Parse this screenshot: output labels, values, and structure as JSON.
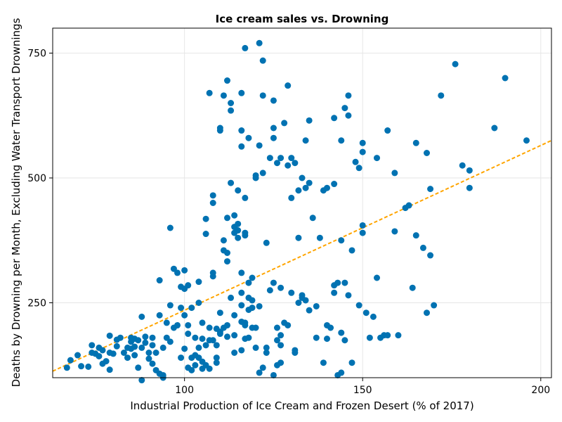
{
  "chart_data": {
    "type": "scatter",
    "title": "Ice cream sales vs. Drowning",
    "xlabel": "Industrial Production of Ice Cream and Frozen Desert (% of 2017)",
    "ylabel": "Deaths by Drowning per Month, Excluding Water Transport Drownings",
    "xlim": [
      63,
      203
    ],
    "ylim": [
      100,
      800
    ],
    "xticks": [
      100,
      150,
      200
    ],
    "yticks": [
      250,
      500,
      750
    ],
    "grid": true,
    "marker_color": "#0072B2",
    "trend_color": "#FFA500",
    "trend_line": {
      "x": [
        63,
        203
      ],
      "y": [
        113,
        575
      ]
    },
    "points": [
      [
        67,
        120
      ],
      [
        68,
        135
      ],
      [
        70,
        145
      ],
      [
        71,
        123
      ],
      [
        73,
        122
      ],
      [
        74,
        150
      ],
      [
        74,
        165
      ],
      [
        75,
        148
      ],
      [
        76,
        143
      ],
      [
        76,
        160
      ],
      [
        77,
        155
      ],
      [
        77,
        128
      ],
      [
        78,
        133
      ],
      [
        79,
        150
      ],
      [
        79,
        116
      ],
      [
        79,
        184
      ],
      [
        80,
        148
      ],
      [
        81,
        163
      ],
      [
        81,
        176
      ],
      [
        82,
        180
      ],
      [
        83,
        150
      ],
      [
        84,
        160
      ],
      [
        84,
        140
      ],
      [
        85,
        172
      ],
      [
        85,
        158
      ],
      [
        85,
        180
      ],
      [
        86,
        145
      ],
      [
        86,
        178
      ],
      [
        86,
        162
      ],
      [
        87,
        120
      ],
      [
        87,
        175
      ],
      [
        88,
        222
      ],
      [
        88,
        160
      ],
      [
        88,
        95
      ],
      [
        89,
        182
      ],
      [
        89,
        170
      ],
      [
        90,
        138
      ],
      [
        90,
        150
      ],
      [
        91,
        180
      ],
      [
        91,
        165
      ],
      [
        91,
        128
      ],
      [
        92,
        150
      ],
      [
        92,
        115
      ],
      [
        93,
        108
      ],
      [
        93,
        295
      ],
      [
        93,
        225
      ],
      [
        94,
        105
      ],
      [
        94,
        160
      ],
      [
        94,
        100
      ],
      [
        95,
        180
      ],
      [
        95,
        210
      ],
      [
        96,
        245
      ],
      [
        96,
        172
      ],
      [
        96,
        400
      ],
      [
        97,
        318
      ],
      [
        97,
        200
      ],
      [
        98,
        310
      ],
      [
        98,
        205
      ],
      [
        99,
        282
      ],
      [
        99,
        240
      ],
      [
        99,
        140
      ],
      [
        100,
        278
      ],
      [
        100,
        315
      ],
      [
        100,
        158
      ],
      [
        100,
        225
      ],
      [
        101,
        188
      ],
      [
        101,
        205
      ],
      [
        101,
        285
      ],
      [
        101,
        120
      ],
      [
        102,
        115
      ],
      [
        102,
        140
      ],
      [
        102,
        240
      ],
      [
        103,
        145
      ],
      [
        103,
        125
      ],
      [
        103,
        180
      ],
      [
        104,
        292
      ],
      [
        104,
        250
      ],
      [
        104,
        160
      ],
      [
        104,
        140
      ],
      [
        105,
        132
      ],
      [
        105,
        118
      ],
      [
        105,
        178
      ],
      [
        105,
        210
      ],
      [
        106,
        165
      ],
      [
        106,
        125
      ],
      [
        106,
        388
      ],
      [
        106,
        418
      ],
      [
        107,
        670
      ],
      [
        107,
        200
      ],
      [
        107,
        175
      ],
      [
        107,
        118
      ],
      [
        108,
        175
      ],
      [
        108,
        465
      ],
      [
        108,
        450
      ],
      [
        108,
        310
      ],
      [
        108,
        303
      ],
      [
        109,
        198
      ],
      [
        109,
        165
      ],
      [
        109,
        140
      ],
      [
        109,
        130
      ],
      [
        110,
        595
      ],
      [
        110,
        600
      ],
      [
        110,
        230
      ],
      [
        110,
        192
      ],
      [
        110,
        188
      ],
      [
        111,
        665
      ],
      [
        111,
        375
      ],
      [
        111,
        355
      ],
      [
        111,
        200
      ],
      [
        112,
        350
      ],
      [
        112,
        695
      ],
      [
        112,
        420
      ],
      [
        112,
        333
      ],
      [
        112,
        205
      ],
      [
        112,
        182
      ],
      [
        113,
        635
      ],
      [
        113,
        650
      ],
      [
        113,
        490
      ],
      [
        113,
        260
      ],
      [
        114,
        425
      ],
      [
        114,
        390
      ],
      [
        114,
        402
      ],
      [
        114,
        225
      ],
      [
        114,
        185
      ],
      [
        114,
        150
      ],
      [
        115,
        395
      ],
      [
        115,
        408
      ],
      [
        115,
        475
      ],
      [
        115,
        380
      ],
      [
        116,
        563
      ],
      [
        116,
        670
      ],
      [
        116,
        595
      ],
      [
        116,
        212
      ],
      [
        116,
        245
      ],
      [
        116,
        310
      ],
      [
        116,
        270
      ],
      [
        116,
        155
      ],
      [
        117,
        760
      ],
      [
        117,
        385
      ],
      [
        117,
        390
      ],
      [
        117,
        460
      ],
      [
        117,
        210
      ],
      [
        117,
        205
      ],
      [
        117,
        178
      ],
      [
        118,
        580
      ],
      [
        118,
        290
      ],
      [
        118,
        260
      ],
      [
        118,
        236
      ],
      [
        118,
        180
      ],
      [
        119,
        300
      ],
      [
        119,
        255
      ],
      [
        119,
        240
      ],
      [
        119,
        200
      ],
      [
        120,
        500
      ],
      [
        120,
        505
      ],
      [
        120,
        200
      ],
      [
        120,
        160
      ],
      [
        121,
        770
      ],
      [
        121,
        565
      ],
      [
        121,
        110
      ],
      [
        121,
        243
      ],
      [
        122,
        735
      ],
      [
        122,
        665
      ],
      [
        122,
        510
      ],
      [
        122,
        120
      ],
      [
        123,
        370
      ],
      [
        123,
        160
      ],
      [
        123,
        150
      ],
      [
        124,
        540
      ],
      [
        124,
        275
      ],
      [
        125,
        580
      ],
      [
        125,
        600
      ],
      [
        125,
        655
      ],
      [
        125,
        290
      ],
      [
        125,
        105
      ],
      [
        126,
        530
      ],
      [
        126,
        200
      ],
      [
        126,
        175
      ],
      [
        126,
        125
      ],
      [
        127,
        540
      ],
      [
        127,
        280
      ],
      [
        127,
        185
      ],
      [
        127,
        165
      ],
      [
        127,
        130
      ],
      [
        128,
        610
      ],
      [
        128,
        210
      ],
      [
        129,
        525
      ],
      [
        129,
        685
      ],
      [
        129,
        205
      ],
      [
        130,
        460
      ],
      [
        130,
        540
      ],
      [
        130,
        270
      ],
      [
        131,
        530
      ],
      [
        131,
        150
      ],
      [
        131,
        155
      ],
      [
        132,
        380
      ],
      [
        132,
        475
      ],
      [
        132,
        250
      ],
      [
        133,
        500
      ],
      [
        133,
        265
      ],
      [
        133,
        260
      ],
      [
        134,
        575
      ],
      [
        134,
        480
      ],
      [
        134,
        255
      ],
      [
        135,
        615
      ],
      [
        135,
        490
      ],
      [
        135,
        235
      ],
      [
        136,
        420
      ],
      [
        137,
        180
      ],
      [
        137,
        243
      ],
      [
        138,
        380
      ],
      [
        139,
        130
      ],
      [
        139,
        475
      ],
      [
        140,
        480
      ],
      [
        140,
        205
      ],
      [
        140,
        178
      ],
      [
        141,
        200
      ],
      [
        142,
        620
      ],
      [
        142,
        488
      ],
      [
        142,
        285
      ],
      [
        142,
        270
      ],
      [
        143,
        290
      ],
      [
        143,
        105
      ],
      [
        144,
        110
      ],
      [
        144,
        575
      ],
      [
        144,
        375
      ],
      [
        144,
        190
      ],
      [
        145,
        640
      ],
      [
        145,
        290
      ],
      [
        145,
        175
      ],
      [
        146,
        665
      ],
      [
        146,
        625
      ],
      [
        146,
        265
      ],
      [
        147,
        355
      ],
      [
        147,
        130
      ],
      [
        148,
        532
      ],
      [
        149,
        245
      ],
      [
        149,
        520
      ],
      [
        150,
        570
      ],
      [
        150,
        552
      ],
      [
        150,
        405
      ],
      [
        150,
        390
      ],
      [
        151,
        230
      ],
      [
        152,
        180
      ],
      [
        153,
        222
      ],
      [
        154,
        540
      ],
      [
        154,
        300
      ],
      [
        155,
        180
      ],
      [
        156,
        185
      ],
      [
        157,
        595
      ],
      [
        157,
        185
      ],
      [
        159,
        510
      ],
      [
        159,
        393
      ],
      [
        160,
        185
      ],
      [
        162,
        440
      ],
      [
        163,
        445
      ],
      [
        164,
        280
      ],
      [
        165,
        570
      ],
      [
        165,
        385
      ],
      [
        167,
        360
      ],
      [
        168,
        550
      ],
      [
        168,
        230
      ],
      [
        169,
        345
      ],
      [
        169,
        478
      ],
      [
        170,
        245
      ],
      [
        172,
        665
      ],
      [
        176,
        728
      ],
      [
        178,
        525
      ],
      [
        180,
        515
      ],
      [
        180,
        480
      ],
      [
        187,
        600
      ],
      [
        190,
        700
      ],
      [
        196,
        575
      ]
    ]
  }
}
